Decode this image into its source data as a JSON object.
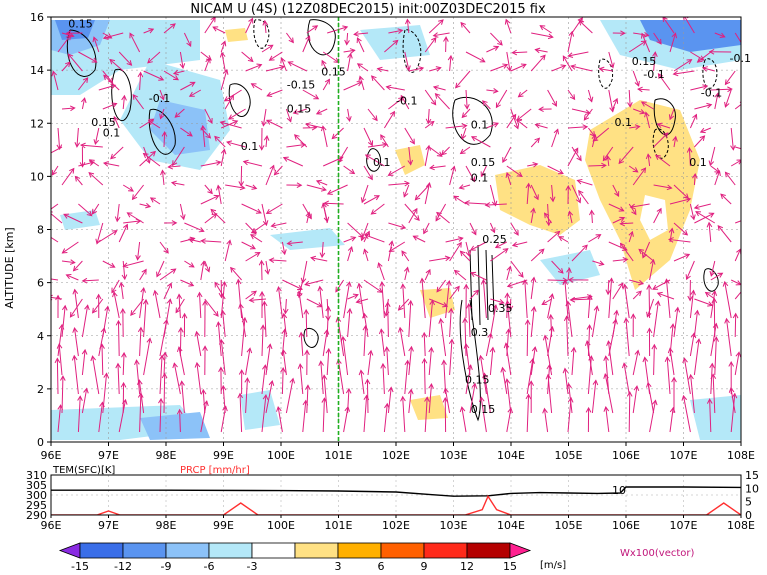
{
  "title": "NICAM U (4S) (12Z08DEC2015) init:00Z03DEC2015 fix",
  "chart_data": [
    {
      "type": "contour-vector cross-section",
      "ylabel": "ALTITUDE [km]",
      "x_ticks": [
        "96E",
        "97E",
        "98E",
        "99E",
        "100E",
        "101E",
        "102E",
        "103E",
        "104E",
        "105E",
        "106E",
        "107E",
        "108E"
      ],
      "xlim": [
        96,
        108
      ],
      "y_ticks": [
        "0",
        "2",
        "4",
        "6",
        "8",
        "10",
        "12",
        "14",
        "16"
      ],
      "ylim": [
        0,
        16
      ],
      "grid": true,
      "marker_longitude": 101,
      "contour_labels": [
        {
          "text": "0.15",
          "lon": 96.3,
          "alt": 15.6
        },
        {
          "text": "-0.15",
          "lon": 100.1,
          "alt": 13.3
        },
        {
          "text": "0.15",
          "lon": 100.7,
          "alt": 13.8
        },
        {
          "text": "0.15",
          "lon": 100.1,
          "alt": 12.4
        },
        {
          "text": "-0.1",
          "lon": 97.7,
          "alt": 12.8
        },
        {
          "text": "0.15",
          "lon": 96.7,
          "alt": 11.9
        },
        {
          "text": "0.1",
          "lon": 96.9,
          "alt": 11.5
        },
        {
          "text": "0.1",
          "lon": 99.3,
          "alt": 11.0
        },
        {
          "text": "-0.1",
          "lon": 102.0,
          "alt": 12.7
        },
        {
          "text": "0.1",
          "lon": 101.6,
          "alt": 10.4
        },
        {
          "text": "0.1",
          "lon": 103.3,
          "alt": 11.8
        },
        {
          "text": "0.15",
          "lon": 103.3,
          "alt": 10.4
        },
        {
          "text": "0.1",
          "lon": 103.3,
          "alt": 9.8
        },
        {
          "text": "0.1",
          "lon": 105.8,
          "alt": 11.9
        },
        {
          "text": "0.15",
          "lon": 106.1,
          "alt": 14.2
        },
        {
          "text": "-0.1",
          "lon": 106.3,
          "alt": 13.7
        },
        {
          "text": "-0.1",
          "lon": 107.3,
          "alt": 13.0
        },
        {
          "text": "-0.1",
          "lon": 107.8,
          "alt": 14.3
        },
        {
          "text": "0.1",
          "lon": 107.1,
          "alt": 10.4
        },
        {
          "text": "0.25",
          "lon": 103.5,
          "alt": 7.5
        },
        {
          "text": "0.35",
          "lon": 103.6,
          "alt": 4.9
        },
        {
          "text": "0.3",
          "lon": 103.3,
          "alt": 4.0
        },
        {
          "text": "0.15",
          "lon": 103.2,
          "alt": 2.2
        },
        {
          "text": "0.15",
          "lon": 103.3,
          "alt": 1.1
        }
      ]
    },
    {
      "type": "line",
      "label_left": "TEM(SFC)[K]",
      "label_right": "PRCP [mm/hr]",
      "y_ticks_left": [
        "310",
        "305",
        "300",
        "295",
        "290"
      ],
      "y_ticks_right": [
        "15",
        "10",
        "5",
        "0"
      ],
      "inline_label": "10",
      "xlim": [
        96,
        108
      ],
      "series": [
        {
          "name": "TEM(SFC)[K]",
          "axis": "left",
          "color": "#000000",
          "x": [
            96,
            98,
            100,
            101,
            102,
            102.6,
            103,
            103.6,
            104,
            104.5,
            105,
            105.5,
            105.9,
            106,
            107,
            108
          ],
          "values": [
            302.4,
            302.4,
            302.2,
            302.0,
            301.5,
            300.2,
            299.4,
            299.6,
            300.8,
            301.2,
            301.0,
            300.8,
            301.0,
            304.0,
            304.0,
            303.8
          ]
        },
        {
          "name": "PRCP [mm/hr]",
          "axis": "right",
          "color": "#ff3030",
          "x": [
            96,
            96.8,
            97.0,
            97.2,
            97.5,
            99.0,
            99.3,
            99.6,
            100.0,
            103.2,
            103.5,
            103.6,
            103.75,
            104.0,
            107.4,
            107.7,
            108
          ],
          "values": [
            0,
            0,
            1.5,
            0,
            0,
            0,
            4.5,
            0,
            0,
            0,
            2,
            7,
            2,
            0,
            0,
            4.5,
            0
          ]
        }
      ]
    },
    {
      "type": "colorbar",
      "ticks": [
        "-15",
        "-12",
        "-9",
        "-6",
        "-3",
        "3",
        "6",
        "9",
        "12",
        "15"
      ],
      "colors": [
        "#8a2be2",
        "#3a6ee8",
        "#5a94f0",
        "#8cc2f8",
        "#b4e8f8",
        "#ffffff",
        "#ffe184",
        "#ffb000",
        "#ff6000",
        "#ff2a1a",
        "#b40000",
        "#ff2090"
      ],
      "unit": "[m/s]"
    }
  ],
  "vector_label": "Wx100(vector)"
}
